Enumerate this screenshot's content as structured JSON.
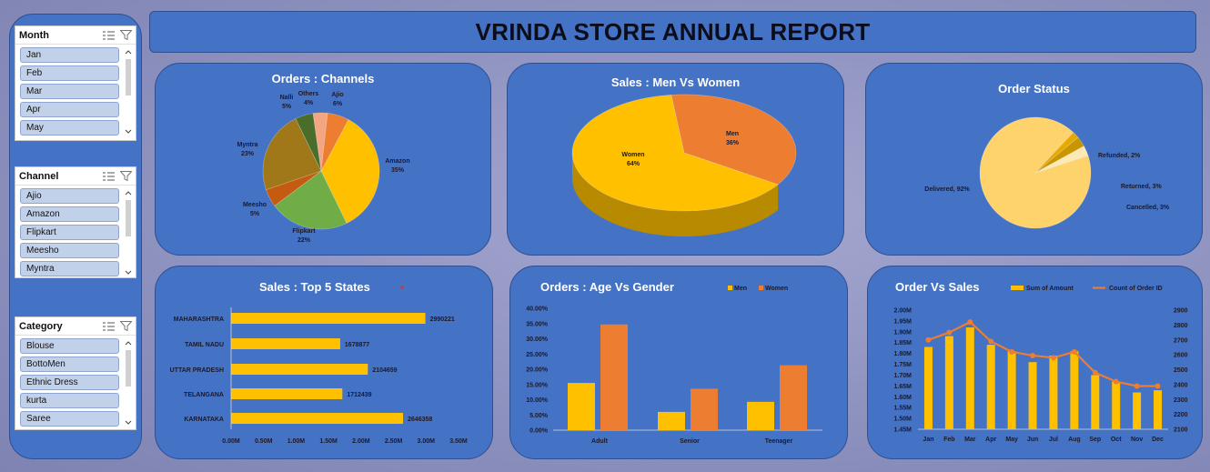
{
  "report_title": "VRINDA STORE ANNUAL REPORT",
  "slicers": [
    {
      "title": "Month",
      "items": [
        "Jan",
        "Feb",
        "Mar",
        "Apr",
        "May"
      ]
    },
    {
      "title": "Channel",
      "items": [
        "Ajio",
        "Amazon",
        "Flipkart",
        "Meesho",
        "Myntra"
      ]
    },
    {
      "title": "Category",
      "items": [
        "Blouse",
        "BottoMen",
        "Ethnic Dress",
        "kurta",
        "Saree"
      ]
    }
  ],
  "colors": {
    "panel": "#4472c4",
    "bar_yellow": "#ffc000",
    "bar_orange": "#ed7d31"
  },
  "chart_data": [
    {
      "id": "orders-channels",
      "type": "pie",
      "title": "Orders : Channels",
      "slices": [
        {
          "label": "Amazon",
          "value": 35,
          "pct_label": "35%",
          "color": "#ffc000"
        },
        {
          "label": "Flipkart",
          "value": 22,
          "pct_label": "22%",
          "color": "#70ad47"
        },
        {
          "label": "Meesho",
          "value": 5,
          "pct_label": "5%",
          "color": "#c55a11"
        },
        {
          "label": "Myntra",
          "value": 23,
          "pct_label": "23%",
          "color": "#a0781a"
        },
        {
          "label": "Nalli",
          "value": 5,
          "pct_label": "5%",
          "color": "#4a6e2a"
        },
        {
          "label": "Others",
          "value": 4,
          "pct_label": "4%",
          "color": "#f4a582"
        },
        {
          "label": "Ajio",
          "value": 6,
          "pct_label": "6%",
          "color": "#ed7d31"
        }
      ]
    },
    {
      "id": "sales-men-women",
      "type": "pie",
      "title": "Sales : Men Vs Women",
      "slices": [
        {
          "label": "Women",
          "value": 64,
          "pct_label": "64%",
          "color": "#ffc000"
        },
        {
          "label": "Men",
          "value": 36,
          "pct_label": "36%",
          "color": "#ed7d31"
        }
      ]
    },
    {
      "id": "order-status",
      "type": "pie",
      "title": "Order Status",
      "slices": [
        {
          "label": "Delivered",
          "value": 92,
          "pct_label": "Delivered, 92%",
          "color": "#ffd36b"
        },
        {
          "label": "Refunded",
          "value": 2,
          "pct_label": "Refunded, 2%",
          "color": "#e7a900"
        },
        {
          "label": "Returned",
          "value": 3,
          "pct_label": "Returned, 3%",
          "color": "#c99500"
        },
        {
          "label": "Cancelled",
          "value": 3,
          "pct_label": "Cancelled, 3%",
          "color": "#fde9b4"
        }
      ]
    },
    {
      "id": "top-states",
      "type": "bar",
      "title": "Sales : Top 5 States",
      "categories": [
        "MAHARASHTRA",
        "TAMIL NADU",
        "UTTAR PRADESH",
        "TELANGANA",
        "KARNATAKA"
      ],
      "values": [
        2990221,
        1678877,
        2104659,
        1712439,
        2646358
      ],
      "value_labels": [
        "2990221",
        "1678877",
        "2104659",
        "1712439",
        "2646358"
      ],
      "xlim": [
        0,
        3500000
      ],
      "x_ticks": [
        "0.00M",
        "0.50M",
        "1.00M",
        "1.50M",
        "2.00M",
        "2.50M",
        "3.00M",
        "3.50M"
      ]
    },
    {
      "id": "age-gender",
      "type": "bar",
      "title": "Orders : Age Vs Gender",
      "categories": [
        "Adult",
        "Senior",
        "Teenager"
      ],
      "series": [
        {
          "name": "Men",
          "values": [
            15.5,
            6.0,
            9.3
          ],
          "color": "#ffc000"
        },
        {
          "name": "Women",
          "values": [
            34.7,
            13.6,
            21.3
          ],
          "color": "#ed7d31"
        }
      ],
      "ylim": [
        0,
        40
      ],
      "y_ticks": [
        "0.00%",
        "5.00%",
        "10.00%",
        "15.00%",
        "20.00%",
        "25.00%",
        "30.00%",
        "35.00%",
        "40.00%"
      ]
    },
    {
      "id": "order-vs-sales",
      "type": "bar",
      "title": "Order Vs Sales",
      "categories": [
        "Jan",
        "Feb",
        "Mar",
        "Apr",
        "May",
        "Jun",
        "Jul",
        "Aug",
        "Sep",
        "Oct",
        "Nov",
        "Dec"
      ],
      "series": [
        {
          "name": "Sum of Amount",
          "type": "bar",
          "values": [
            1.83,
            1.88,
            1.92,
            1.84,
            1.81,
            1.76,
            1.79,
            1.81,
            1.7,
            1.67,
            1.62,
            1.63
          ],
          "color": "#ffc000"
        },
        {
          "name": "Count of Order ID",
          "type": "line",
          "values": [
            2700,
            2750,
            2820,
            2690,
            2620,
            2595,
            2580,
            2620,
            2480,
            2420,
            2390,
            2390
          ],
          "color": "#ed7d31"
        }
      ],
      "ylim": [
        1.45,
        2.0
      ],
      "y_ticks": [
        "1.45M",
        "1.50M",
        "1.55M",
        "1.60M",
        "1.65M",
        "1.70M",
        "1.75M",
        "1.80M",
        "1.85M",
        "1.90M",
        "1.95M",
        "2.00M"
      ],
      "y2lim": [
        2100,
        2900
      ],
      "y2_ticks": [
        "2100",
        "2200",
        "2300",
        "2400",
        "2500",
        "2600",
        "2700",
        "2800",
        "2900"
      ]
    }
  ]
}
